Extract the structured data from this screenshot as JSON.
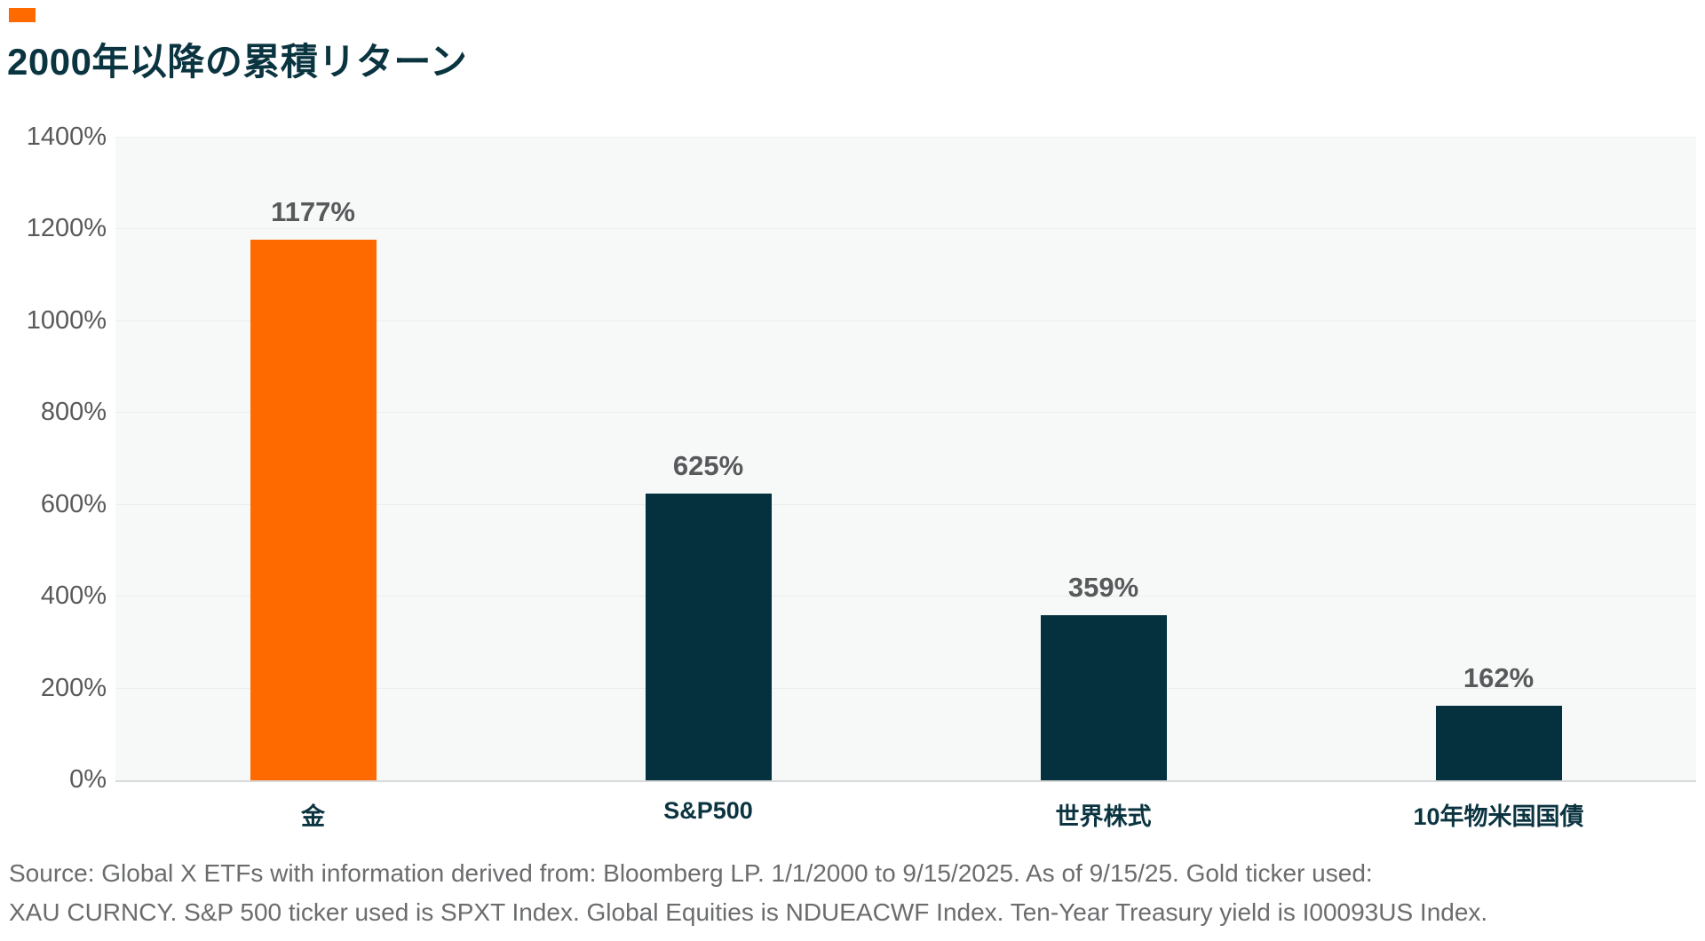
{
  "header": {
    "accent_color": "#FF6A00",
    "title": "2000年以降の累積リターン"
  },
  "chart_data": {
    "type": "bar",
    "title": "2000年以降の累積リターン",
    "categories": [
      "金",
      "S&P500",
      "世界株式",
      "10年物米国国債"
    ],
    "values": [
      1177,
      625,
      359,
      162
    ],
    "data_labels": [
      "1177%",
      "625%",
      "359%",
      "162%"
    ],
    "bar_colors": [
      "#FF6A00",
      "#04313D",
      "#04313D",
      "#04313D"
    ],
    "xlabel": "",
    "ylabel": "",
    "ylim": [
      0,
      1400
    ],
    "ytick_step": 200,
    "ytick_suffix": "%",
    "ytick_labels": [
      "0%",
      "200%",
      "400%",
      "600%",
      "800%",
      "1000%",
      "1200%",
      "1400%"
    ],
    "grid": true,
    "legend": false,
    "plot_background": "#F7F8F8",
    "gridline_color": "#EBECEC",
    "axis_label_color": "#58595B",
    "category_label_color": "#0B3441"
  },
  "footer": {
    "line1": "Source: Global X ETFs with information derived from: Bloomberg LP. 1/1/2000 to 9/15/2025. As of 9/15/25. Gold ticker used:",
    "line2": "XAU CURNCY. S&P 500 ticker used is SPXT Index. Global Equities is NDUEACWF Index. Ten-Year Treasury yield is I00093US Index."
  }
}
